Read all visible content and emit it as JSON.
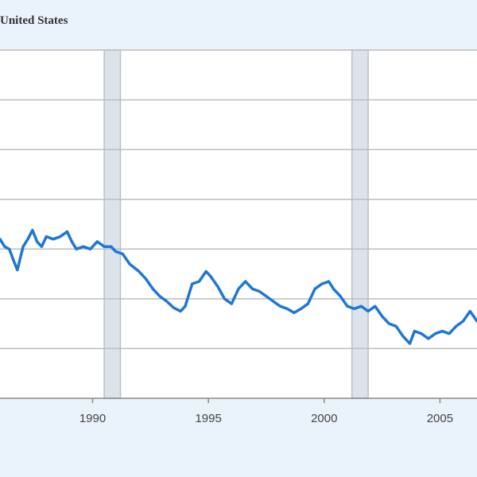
{
  "chart_data": {
    "type": "line",
    "title": "United States",
    "xlabel": "",
    "ylabel": "",
    "xlim": [
      1986.0,
      2006.6
    ],
    "ylim": [
      0,
      7
    ],
    "x_ticks": [
      1990,
      1995,
      2000,
      2005
    ],
    "x_tick_labels": [
      "1990",
      "1995",
      "2000",
      "2005"
    ],
    "grid": true,
    "recessions": [
      [
        1990.5,
        1991.2
      ],
      [
        2001.2,
        2001.9
      ]
    ],
    "colors": {
      "line": "#1f77d4",
      "recession": "#dde3ea",
      "recession_edge": "#b9c0c8",
      "grid": "#bdbdbd",
      "page": "#eaf2fb",
      "plot": "#ffffff"
    },
    "series": [
      {
        "values": [
          [
            1986.0,
            3.2
          ],
          [
            1986.2,
            3.05
          ],
          [
            1986.4,
            3.0
          ],
          [
            1986.6,
            2.75
          ],
          [
            1986.75,
            2.58
          ],
          [
            1987.0,
            3.05
          ],
          [
            1987.2,
            3.2
          ],
          [
            1987.4,
            3.38
          ],
          [
            1987.6,
            3.15
          ],
          [
            1987.8,
            3.05
          ],
          [
            1988.0,
            3.25
          ],
          [
            1988.3,
            3.2
          ],
          [
            1988.6,
            3.25
          ],
          [
            1988.9,
            3.35
          ],
          [
            1989.1,
            3.15
          ],
          [
            1989.3,
            3.0
          ],
          [
            1989.6,
            3.05
          ],
          [
            1989.9,
            3.0
          ],
          [
            1990.2,
            3.15
          ],
          [
            1990.5,
            3.05
          ],
          [
            1990.8,
            3.05
          ],
          [
            1991.0,
            2.95
          ],
          [
            1991.3,
            2.9
          ],
          [
            1991.6,
            2.7
          ],
          [
            1992.0,
            2.55
          ],
          [
            1992.3,
            2.4
          ],
          [
            1992.6,
            2.2
          ],
          [
            1992.9,
            2.05
          ],
          [
            1993.2,
            1.95
          ],
          [
            1993.5,
            1.82
          ],
          [
            1993.8,
            1.75
          ],
          [
            1994.0,
            1.85
          ],
          [
            1994.3,
            2.3
          ],
          [
            1994.6,
            2.35
          ],
          [
            1994.9,
            2.55
          ],
          [
            1995.1,
            2.45
          ],
          [
            1995.4,
            2.25
          ],
          [
            1995.7,
            2.0
          ],
          [
            1996.0,
            1.9
          ],
          [
            1996.3,
            2.2
          ],
          [
            1996.6,
            2.35
          ],
          [
            1996.9,
            2.2
          ],
          [
            1997.2,
            2.15
          ],
          [
            1997.5,
            2.05
          ],
          [
            1997.8,
            1.95
          ],
          [
            1998.1,
            1.85
          ],
          [
            1998.4,
            1.8
          ],
          [
            1998.7,
            1.72
          ],
          [
            1999.0,
            1.8
          ],
          [
            1999.3,
            1.9
          ],
          [
            1999.6,
            2.2
          ],
          [
            1999.9,
            2.3
          ],
          [
            2000.2,
            2.35
          ],
          [
            2000.4,
            2.2
          ],
          [
            2000.7,
            2.05
          ],
          [
            2001.0,
            1.85
          ],
          [
            2001.3,
            1.8
          ],
          [
            2001.6,
            1.85
          ],
          [
            2001.9,
            1.75
          ],
          [
            2002.2,
            1.85
          ],
          [
            2002.5,
            1.65
          ],
          [
            2002.8,
            1.5
          ],
          [
            2003.1,
            1.45
          ],
          [
            2003.4,
            1.25
          ],
          [
            2003.7,
            1.1
          ],
          [
            2003.9,
            1.35
          ],
          [
            2004.2,
            1.3
          ],
          [
            2004.5,
            1.2
          ],
          [
            2004.8,
            1.3
          ],
          [
            2005.1,
            1.35
          ],
          [
            2005.4,
            1.3
          ],
          [
            2005.7,
            1.45
          ],
          [
            2006.0,
            1.55
          ],
          [
            2006.3,
            1.75
          ],
          [
            2006.6,
            1.55
          ]
        ]
      }
    ]
  }
}
